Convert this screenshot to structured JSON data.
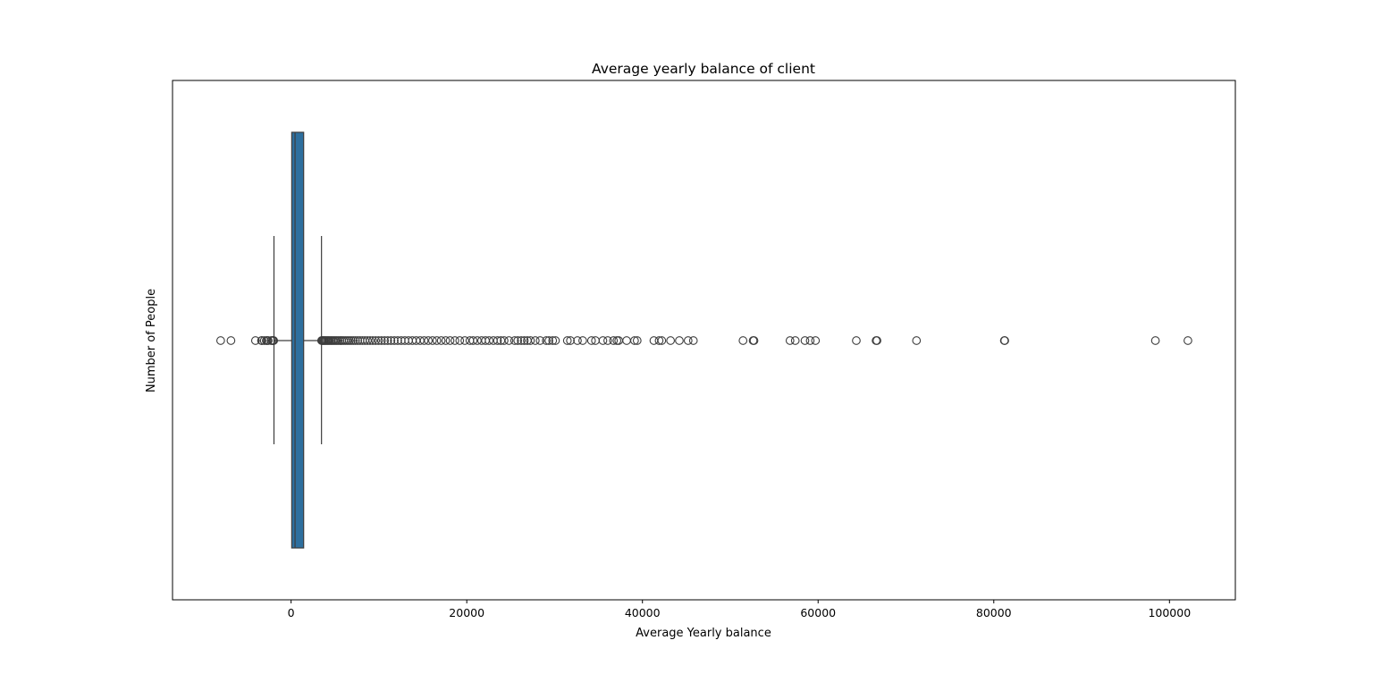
{
  "chart_data": {
    "type": "box",
    "orientation": "horizontal",
    "title": "Average yearly balance of client",
    "xlabel": "Average Yearly balance",
    "ylabel": "Number of People",
    "xlim": [
      -13500,
      107500
    ],
    "xticks": [
      0,
      20000,
      40000,
      60000,
      80000,
      100000
    ],
    "xtick_labels": [
      "0",
      "20000",
      "40000",
      "60000",
      "80000",
      "100000"
    ],
    "grid": false,
    "box": {
      "whisker_low": -1950,
      "q1": 72,
      "median": 448,
      "q3": 1428,
      "whisker_high": 3460,
      "color": "#2e6f9e",
      "line_color": "#3d3d3d"
    },
    "outliers_low": [
      -8019,
      -6847,
      -4057,
      -3372,
      -3313,
      -3058,
      -2827,
      -2712,
      -2604,
      -2282,
      -2122,
      -2093,
      -2049,
      -1980
    ],
    "outliers_high": [
      3470,
      3550,
      3650,
      3760,
      3880,
      4000,
      4130,
      4260,
      4400,
      4550,
      4700,
      4860,
      5030,
      5200,
      5380,
      5570,
      5760,
      5960,
      6170,
      6390,
      6610,
      6840,
      7080,
      7330,
      7590,
      7850,
      8120,
      8400,
      8690,
      8990,
      9300,
      9620,
      9950,
      10290,
      10640,
      11000,
      11370,
      11750,
      12140,
      12540,
      12950,
      13370,
      13800,
      14240,
      14690,
      15150,
      15620,
      16100,
      16590,
      17090,
      17600,
      18100,
      18650,
      19200,
      19780,
      20350,
      20720,
      21200,
      21690,
      22130,
      22540,
      23030,
      23500,
      23880,
      24250,
      24800,
      25450,
      25800,
      26200,
      26550,
      26900,
      27250,
      27800,
      28350,
      29050,
      29350,
      29780,
      30100,
      31450,
      31800,
      32600,
      33200,
      34200,
      34650,
      35500,
      36050,
      36700,
      37100,
      37300,
      38200,
      39100,
      39400,
      41300,
      41900,
      42200,
      43200,
      44200,
      45200,
      45800,
      51450,
      52600,
      52700,
      56800,
      57400,
      58500,
      59100,
      59700,
      64350,
      66600,
      66700,
      71200,
      81200,
      81250,
      98400,
      102100
    ]
  }
}
